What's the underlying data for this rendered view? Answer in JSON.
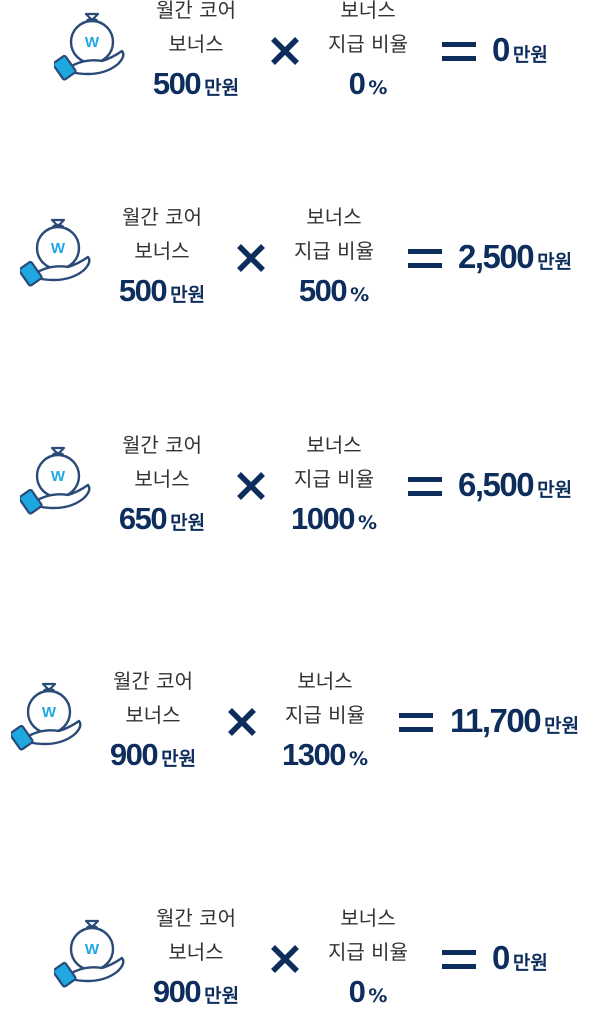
{
  "colors": {
    "primary": "#0d2d5c",
    "accent": "#1fa7e0",
    "text": "#333333"
  },
  "icons": {
    "bonus": "money-bag-hand-icon",
    "multiply": "multiply-icon",
    "equals": "equals-icon"
  },
  "labels": {
    "monthly_core_bonus_line1": "월간 코어",
    "monthly_core_bonus_line2": "보너스",
    "payout_rate_line1": "보너스",
    "payout_rate_line2": "지급 비율",
    "bag_letter": "W",
    "unit_won": "만원",
    "unit_percent": "%"
  },
  "rows": [
    {
      "bonus": "500",
      "rate": "0",
      "result": "0"
    },
    {
      "bonus": "500",
      "rate": "500",
      "result": "2,500"
    },
    {
      "bonus": "650",
      "rate": "1000",
      "result": "6,500"
    },
    {
      "bonus": "900",
      "rate": "1300",
      "result": "11,700"
    },
    {
      "bonus": "900",
      "rate": "0",
      "result": "0"
    }
  ]
}
